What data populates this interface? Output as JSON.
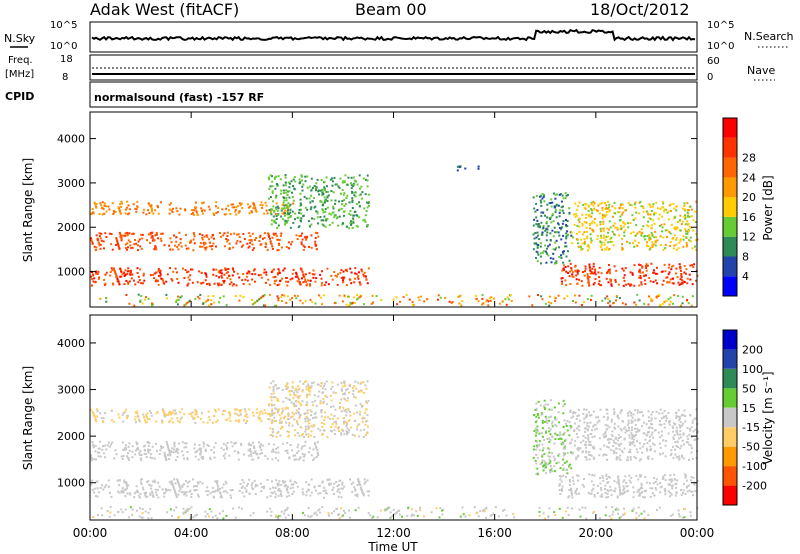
{
  "header": {
    "station": "Adak West (fitACF)",
    "beam": "Beam 00",
    "date": "18/Oct/2012"
  },
  "summary_panel": {
    "nsky_label": "N.Sky",
    "nsky_ticks": [
      "10^5",
      "10^0"
    ],
    "nsearch_label": "N.Search",
    "nsearch_ticks": [
      "10^5",
      "10^0"
    ],
    "freq_label": "Freq.",
    "freq_unit": "[MHz]",
    "freq_ticks": [
      "18",
      "8"
    ],
    "nave_label": "Nave",
    "nave_ticks": [
      "60",
      "0"
    ],
    "cpid_label": "CPID",
    "cpid_text": "normalsound (fast) -157 RF"
  },
  "colors": {
    "power_scale": [
      "#0000ff",
      "#2244aa",
      "#2e8b57",
      "#66cc33",
      "#ffcc00",
      "#ff9900",
      "#ff6600",
      "#ff3300",
      "#ff0000"
    ],
    "velocity_scale": [
      "#ff0000",
      "#ff5500",
      "#ff9900",
      "#ffcc66",
      "#c8c8c8",
      "#66cc33",
      "#2e8b57",
      "#2244aa",
      "#0000cc"
    ],
    "ground_scatter": "#c8c8c8"
  },
  "chart_data": [
    {
      "type": "heatmap",
      "name": "power",
      "ylabel": "Slant Range [km]",
      "yticks": [
        "1000",
        "2000",
        "3000",
        "4000"
      ],
      "ylim": [
        200,
        4600
      ],
      "xlim": [
        0,
        24
      ],
      "colorbar_label": "Power [dB]",
      "colorbar_ticks": [
        "4",
        "8",
        "12",
        "16",
        "20",
        "24",
        "28"
      ],
      "regions": [
        {
          "t0": 0,
          "t1": 11,
          "r0": 700,
          "r1": 1100,
          "level": 28
        },
        {
          "t0": 0,
          "t1": 9,
          "r0": 1500,
          "r1": 1900,
          "level": 26
        },
        {
          "t0": 0,
          "t1": 8,
          "r0": 2300,
          "r1": 2600,
          "level": 22
        },
        {
          "t0": 7,
          "t1": 11,
          "r0": 2000,
          "r1": 3200,
          "level": 10
        },
        {
          "t0": 14.5,
          "t1": 15.5,
          "r0": 3300,
          "r1": 3400,
          "level": 6
        },
        {
          "t0": 17.5,
          "t1": 19,
          "r0": 1200,
          "r1": 2800,
          "level": 8
        },
        {
          "t0": 18.5,
          "t1": 24,
          "r0": 700,
          "r1": 1200,
          "level": 28
        },
        {
          "t0": 19,
          "t1": 24,
          "r0": 1500,
          "r1": 2600,
          "level": 16
        }
      ]
    },
    {
      "type": "heatmap",
      "name": "velocity",
      "ylabel": "Slant Range [km]",
      "yticks": [
        "1000",
        "2000",
        "3000",
        "4000"
      ],
      "ylim": [
        200,
        4600
      ],
      "xlim": [
        0,
        24
      ],
      "colorbar_label": "Velocity [m s⁻¹]",
      "colorbar_ticks": [
        "200",
        "100",
        "50",
        "15",
        "-15",
        "-50",
        "-100",
        "-200"
      ],
      "xticks": [
        "00:00",
        "04:00",
        "08:00",
        "12:00",
        "16:00",
        "20:00",
        "00:00"
      ],
      "xlabel": "Time UT",
      "regions": [
        {
          "t0": 0,
          "t1": 11,
          "r0": 700,
          "r1": 1100,
          "level": 0
        },
        {
          "t0": 0,
          "t1": 9,
          "r0": 1500,
          "r1": 1900,
          "level": 0
        },
        {
          "t0": 0,
          "t1": 8,
          "r0": 2300,
          "r1": 2600,
          "level": -40
        },
        {
          "t0": 7,
          "t1": 11,
          "r0": 2000,
          "r1": 3200,
          "level": -30
        },
        {
          "t0": 17.5,
          "t1": 19,
          "r0": 1200,
          "r1": 2800,
          "level": 30
        },
        {
          "t0": 18.5,
          "t1": 24,
          "r0": 700,
          "r1": 1200,
          "level": 0
        },
        {
          "t0": 19,
          "t1": 24,
          "r0": 1500,
          "r1": 2600,
          "level": 10
        }
      ]
    }
  ]
}
